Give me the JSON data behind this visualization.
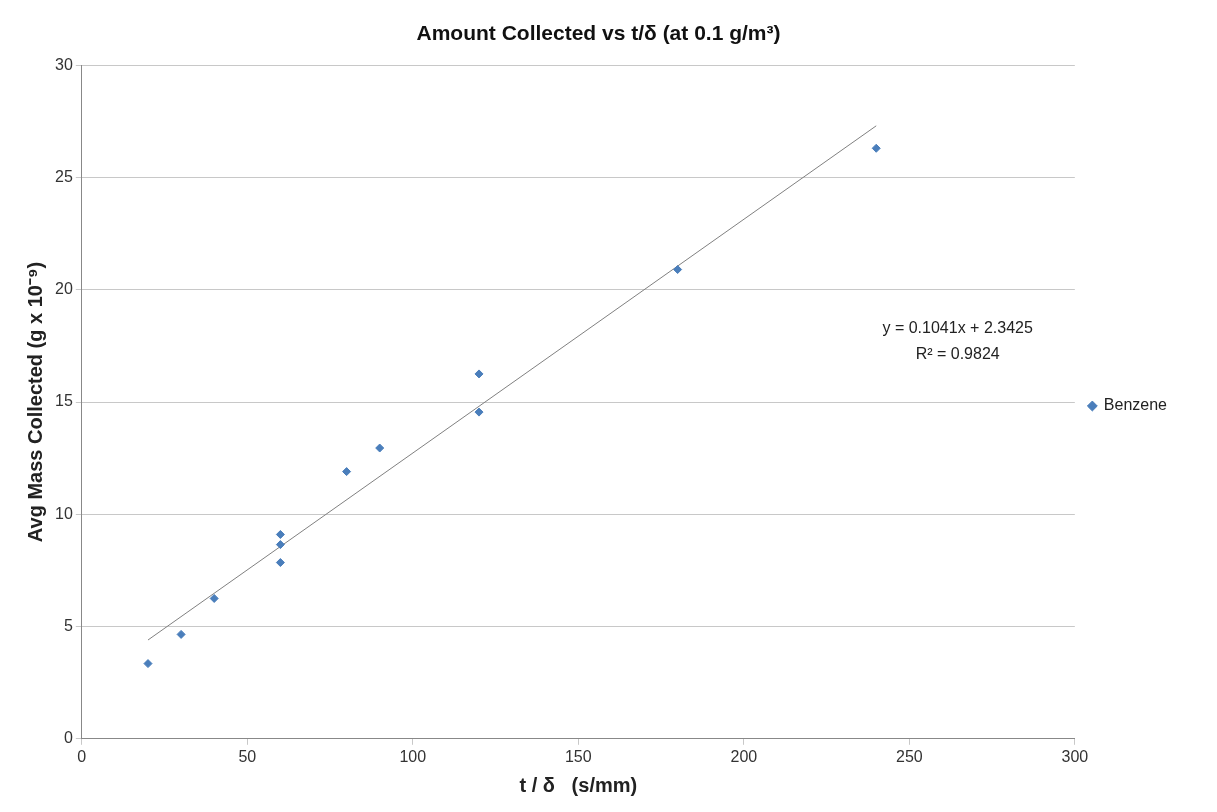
{
  "chart_data": {
    "type": "scatter",
    "title": "Amount Collected vs t/δ (at 0.1 g/m³)",
    "xlabel": "t / δ   (s/mm)",
    "ylabel": "Avg Mass Collected (g x 10⁻⁹)",
    "series": [
      {
        "name": "Benzene",
        "color": "#4a7ebb",
        "type": "scatter",
        "marker": "diamond",
        "x": [
          20,
          30,
          40,
          60,
          60,
          60,
          80,
          90,
          120,
          120,
          180,
          240
        ],
        "values": [
          3.35,
          4.65,
          6.25,
          9.1,
          8.65,
          7.85,
          11.9,
          12.95,
          16.25,
          14.55,
          20.9,
          26.3
        ]
      },
      {
        "color": "#808080",
        "type": "line",
        "marker": "none",
        "x": [
          20,
          240
        ],
        "values": [
          4.4,
          27.3
        ]
      }
    ],
    "annotations": [
      "y = 0.1041x + 2.3425",
      "R² = 0.9824"
    ],
    "xlim": [
      0,
      300
    ],
    "xticks": [
      0,
      50,
      100,
      150,
      200,
      250,
      300
    ],
    "ylim": [
      0,
      30
    ],
    "yticks": [
      0,
      5,
      10,
      15,
      20,
      25,
      30
    ],
    "grid": "y",
    "legend": "right"
  }
}
